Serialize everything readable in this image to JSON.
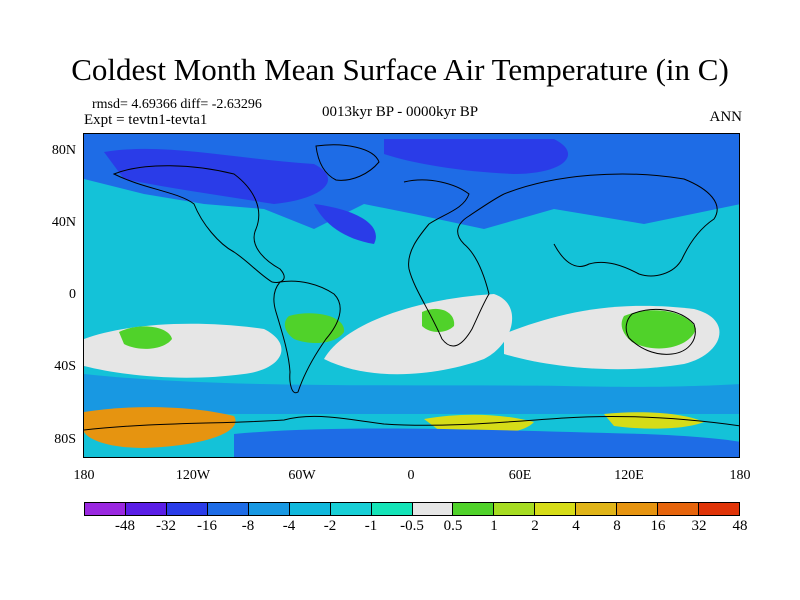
{
  "title": "Coldest Month Mean Surface Air Temperature (in C)",
  "stats": "rmsd= 4.69366 diff= -2.63296",
  "experiment": "Expt = tevtn1-tevta1",
  "period": "0013kyr BP - 0000kyr BP",
  "season": "ANN",
  "map": {
    "projection": "cylindrical equidistant",
    "lon_range": [
      -180,
      180
    ],
    "lat_range": [
      -90,
      90
    ],
    "y_ticks": [
      {
        "label": "80N",
        "lat": 80
      },
      {
        "label": "40N",
        "lat": 40
      },
      {
        "label": "0",
        "lat": 0
      },
      {
        "label": "40S",
        "lat": -40
      },
      {
        "label": "80S",
        "lat": -80
      }
    ],
    "x_ticks": [
      {
        "label": "180",
        "lon": -180
      },
      {
        "label": "120W",
        "lon": -120
      },
      {
        "label": "60W",
        "lon": -60
      },
      {
        "label": "0",
        "lon": 0
      },
      {
        "label": "60E",
        "lon": 60
      },
      {
        "label": "120E",
        "lon": 120
      },
      {
        "label": "180",
        "lon": 180
      }
    ],
    "coastline_color": "#000000"
  },
  "colorbar": {
    "colors": [
      "#9a28e0",
      "#5a1ee6",
      "#2a3ce8",
      "#1e6ce6",
      "#1898e2",
      "#10b8dc",
      "#18cfd6",
      "#14e4b8",
      "#e6e6e6",
      "#50d22a",
      "#a6dc22",
      "#d6dc18",
      "#e0b418",
      "#e69410",
      "#e6640c",
      "#e03408"
    ],
    "labels": [
      "-48",
      "-32",
      "-16",
      "-8",
      "-4",
      "-2",
      "-1",
      "-0.5",
      "0.5",
      "1",
      "2",
      "4",
      "8",
      "16",
      "32",
      "48"
    ]
  },
  "regions": [
    {
      "id": "global-ocean-base",
      "bin": "-2"
    },
    {
      "id": "northern-hemisphere-land",
      "bin": "-8"
    },
    {
      "id": "arctic-cold-core",
      "bin": "-16"
    },
    {
      "id": "south-atlantic-neutral",
      "bin": "0.5"
    },
    {
      "id": "southern-indian-neutral",
      "bin": "0.5"
    },
    {
      "id": "south-pacific-neutral",
      "bin": "0.5"
    },
    {
      "id": "southern-ocean-belt",
      "bin": "-4"
    },
    {
      "id": "south-america-warm",
      "bin": "1"
    },
    {
      "id": "southern-africa-warm",
      "bin": "1"
    },
    {
      "id": "australia-warm",
      "bin": "1"
    },
    {
      "id": "pacific-warm-patch",
      "bin": "1"
    },
    {
      "id": "ross-sea-warm",
      "bin": "16"
    },
    {
      "id": "antarctica-warm",
      "bin": "4"
    }
  ]
}
